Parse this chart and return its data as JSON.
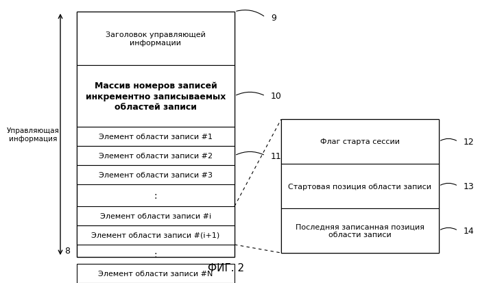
{
  "bg_color": "#ffffff",
  "title": "ФИГ. 2",
  "title_fontsize": 11,
  "label_8": "8",
  "label_9": "9",
  "label_10": "10",
  "label_11": "11",
  "label_12": "12",
  "label_13": "13",
  "label_14": "14",
  "left_label_line1": "Управляющая",
  "left_label_line2": "информация",
  "box_header_text": "Заголовок управляющей\nинформации",
  "box_array_text": "Массив номеров записей\nинкрементно записываемых\nобластей записи",
  "box_elem1": "Элемент области записи #1",
  "box_elem2": "Элемент области записи #2",
  "box_elem3": "Элемент области записи #3",
  "box_elemi": "Элемент области записи #i",
  "box_elemi1": "Элемент области записи #(i+1)",
  "box_elemN": "Элемент области записи #N",
  "right_flag": "Флаг старта сессии",
  "right_start": "Стартовая позиция области записи",
  "right_last": "Последняя записанная позиция\nобласти записи",
  "font_size": 8.0,
  "array_font_size": 9.0,
  "box_color": "#ffffff",
  "box_edge_color": "#000000",
  "fig_w": 7.0,
  "fig_h": 4.14,
  "dpi": 100
}
